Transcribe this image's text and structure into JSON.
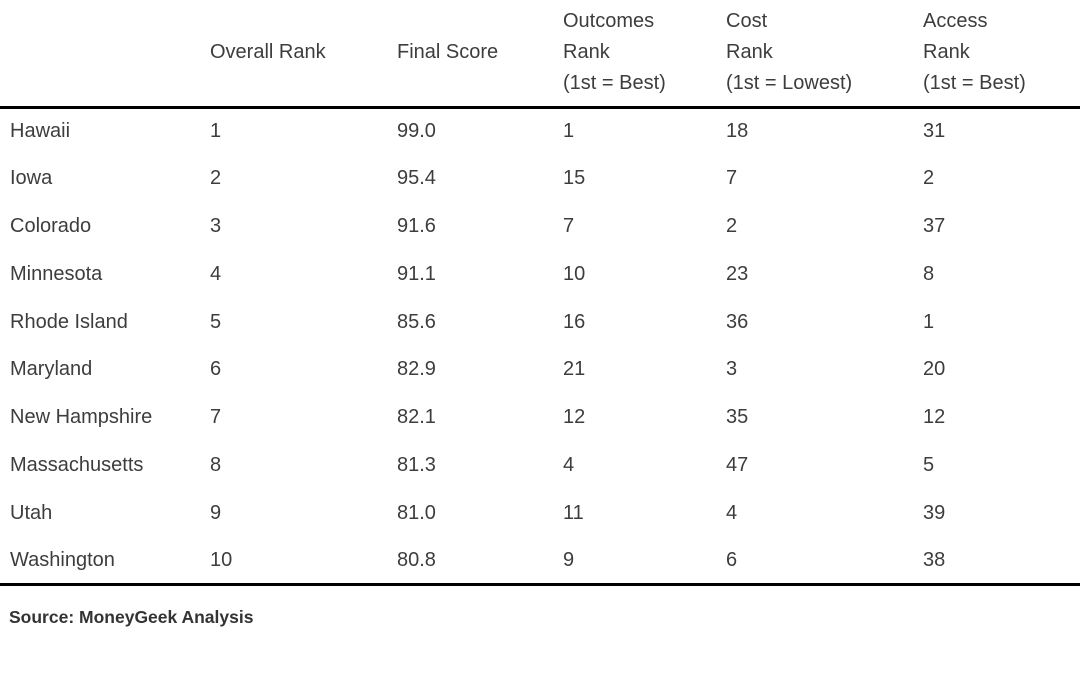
{
  "chart_data": {
    "type": "table",
    "columns": [
      {
        "key": "state",
        "label": ""
      },
      {
        "key": "overall_rank",
        "label": "Overall Rank"
      },
      {
        "key": "final_score",
        "label": "Final Score"
      },
      {
        "key": "outcomes_rank",
        "label": "Outcomes\nRank\n(1st = Best)"
      },
      {
        "key": "cost_rank",
        "label": "Cost\nRank\n(1st = Lowest)"
      },
      {
        "key": "access_rank",
        "label": "Access\nRank\n(1st = Best)"
      }
    ],
    "rows": [
      {
        "state": "Hawaii",
        "overall_rank": "1",
        "final_score": "99.0",
        "outcomes_rank": "1",
        "cost_rank": "18",
        "access_rank": "31"
      },
      {
        "state": "Iowa",
        "overall_rank": "2",
        "final_score": "95.4",
        "outcomes_rank": "15",
        "cost_rank": "7",
        "access_rank": "2"
      },
      {
        "state": "Colorado",
        "overall_rank": "3",
        "final_score": "91.6",
        "outcomes_rank": "7",
        "cost_rank": "2",
        "access_rank": "37"
      },
      {
        "state": "Minnesota",
        "overall_rank": "4",
        "final_score": "91.1",
        "outcomes_rank": "10",
        "cost_rank": "23",
        "access_rank": "8"
      },
      {
        "state": "Rhode Island",
        "overall_rank": "5",
        "final_score": "85.6",
        "outcomes_rank": "16",
        "cost_rank": "36",
        "access_rank": "1"
      },
      {
        "state": "Maryland",
        "overall_rank": "6",
        "final_score": "82.9",
        "outcomes_rank": "21",
        "cost_rank": "3",
        "access_rank": "20"
      },
      {
        "state": "New Hampshire",
        "overall_rank": "7",
        "final_score": "82.1",
        "outcomes_rank": "12",
        "cost_rank": "35",
        "access_rank": "12"
      },
      {
        "state": "Massachusetts",
        "overall_rank": "8",
        "final_score": "81.3",
        "outcomes_rank": "4",
        "cost_rank": "47",
        "access_rank": "5"
      },
      {
        "state": "Utah",
        "overall_rank": "9",
        "final_score": "81.0",
        "outcomes_rank": "11",
        "cost_rank": "4",
        "access_rank": "39"
      },
      {
        "state": "Washington",
        "overall_rank": "10",
        "final_score": "80.8",
        "outcomes_rank": "9",
        "cost_rank": "6",
        "access_rank": "38"
      }
    ]
  },
  "source_note": "Source: MoneyGeek Analysis",
  "colors": {
    "text": "#3d3d3d",
    "rule": "#000000",
    "background": "#ffffff"
  }
}
